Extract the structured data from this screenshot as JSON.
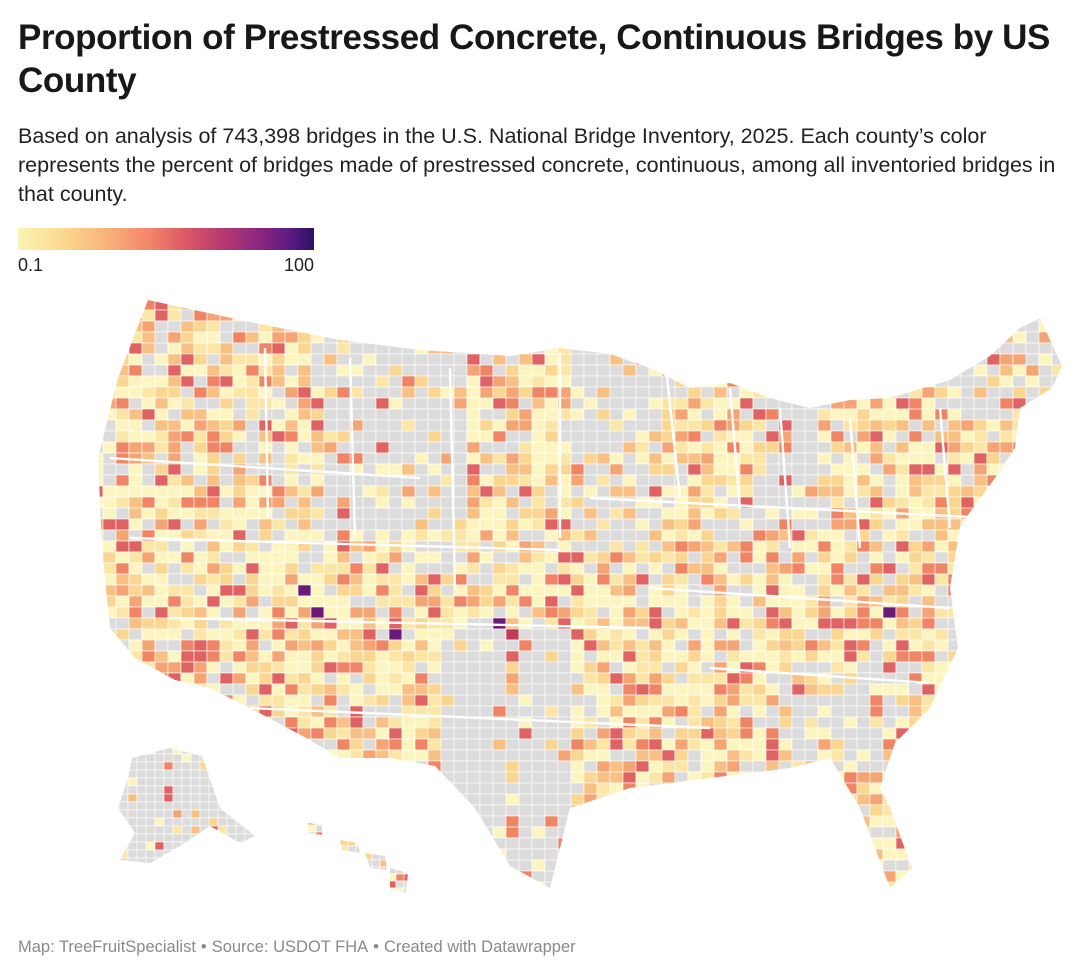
{
  "header": {
    "title": "Proportion of Prestressed Concrete, Continuous Bridges by US County",
    "description": "Based on analysis of 743,398 bridges in the U.S. National Bridge Inventory, 2025. Each county’s color represents the percent of bridges made of prestressed concrete, continuous,  among all inventoried bridges in that county."
  },
  "legend": {
    "min_label": "0.1",
    "max_label": "100",
    "scale": [
      "#fbf4b6",
      "#f9b27a",
      "#db5765",
      "#8a2580",
      "#2b1163"
    ],
    "no_data_color": "#dcdcdc"
  },
  "map": {
    "no_data_color": "#dcdcdc",
    "palette": [
      "#fdf5c0",
      "#fbe6a5",
      "#fad691",
      "#f8c183",
      "#f5a574",
      "#ef8565",
      "#e06363"
    ],
    "peak_colors": [
      "#c23a58",
      "#6b1a7a"
    ]
  },
  "footer": {
    "credit": "Map: TreeFruitSpecialist",
    "source": "Source: USDOT FHA",
    "tool": "Created with Datawrapper",
    "separator": "•"
  }
}
